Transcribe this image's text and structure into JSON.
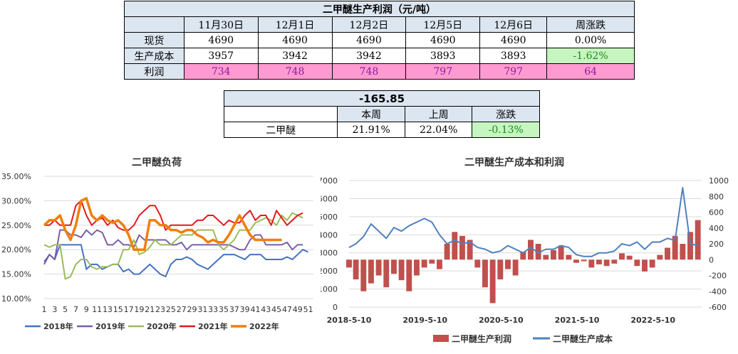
{
  "table1": {
    "title": "二甲醚生产利润（元/吨）",
    "headers": [
      "11月30日",
      "12月1日",
      "12月2日",
      "12月5日",
      "12月6日",
      "周涨跌"
    ],
    "rows": [
      {
        "label": "现货",
        "values": [
          "4690",
          "4690",
          "4690",
          "4690",
          "4690",
          "0.00%"
        ]
      },
      {
        "label": "生产成本",
        "values": [
          "3957",
          "3942",
          "3942",
          "3893",
          "3893",
          "-1.62%"
        ]
      },
      {
        "label": "利润",
        "values": [
          "734",
          "748",
          "748",
          "797",
          "797",
          "64"
        ]
      }
    ]
  },
  "table2": {
    "title": "-165.85",
    "headers": [
      "本周",
      "上周",
      "涨跌"
    ],
    "row": {
      "label": "二甲醚",
      "values": [
        "21.91%",
        "22.04%",
        "-0.13%"
      ]
    }
  },
  "chart_data": [
    {
      "type": "line",
      "title": "二甲醚负荷",
      "yticks": [
        "10.00%",
        "15.00%",
        "20.00%",
        "25.00%",
        "30.00%",
        "35.00%"
      ],
      "ylim": [
        10,
        35
      ],
      "xticks": [
        "1",
        "3",
        "5",
        "7",
        "9",
        "11",
        "13",
        "15",
        "17",
        "19",
        "21",
        "23",
        "25",
        "27",
        "29",
        "31",
        "33",
        "35",
        "37",
        "39",
        "41",
        "43",
        "45",
        "47",
        "49",
        "51"
      ],
      "xlim": [
        1,
        52
      ],
      "series": [
        {
          "name": "2018年",
          "color": "#4472c4",
          "x": [
            1,
            2,
            3,
            4,
            5,
            6,
            7,
            8,
            9,
            10,
            11,
            12,
            13,
            14,
            15,
            16,
            17,
            18,
            19,
            20,
            21,
            22,
            23,
            24,
            25,
            26,
            27,
            28,
            29,
            30,
            31,
            32,
            33,
            34,
            35,
            36,
            37,
            38,
            39,
            40,
            41,
            42,
            43,
            44,
            45,
            46,
            47,
            48,
            49,
            50,
            51
          ],
          "y": [
            17.5,
            19,
            18,
            21,
            21,
            21,
            21,
            21,
            16,
            17,
            17,
            16,
            16.5,
            17,
            17,
            15.5,
            16,
            15,
            15,
            16,
            17,
            16,
            15,
            14.5,
            17,
            18,
            18,
            18.5,
            18,
            17,
            16.5,
            16,
            17,
            18,
            19,
            19,
            19,
            18.5,
            18,
            19,
            19,
            19,
            18,
            18,
            18,
            18,
            18.5,
            18,
            19,
            20,
            19.5
          ]
        },
        {
          "name": "2019年",
          "color": "#7b5ea7",
          "x": [
            1,
            2,
            3,
            4,
            5,
            6,
            7,
            8,
            9,
            10,
            11,
            12,
            13,
            14,
            15,
            16,
            17,
            18,
            19,
            20,
            21,
            22,
            23,
            24,
            25,
            26,
            27,
            28,
            29,
            30,
            31,
            32,
            33,
            34,
            35,
            36,
            37,
            38,
            39,
            40,
            41,
            42,
            43,
            44,
            45,
            46,
            47,
            48,
            49,
            50
          ],
          "y": [
            17,
            19,
            18,
            24,
            24,
            23,
            23,
            22.5,
            24,
            23,
            24,
            23.5,
            21,
            21,
            22,
            21,
            21,
            20.5,
            23,
            22,
            22,
            22,
            22,
            22,
            21,
            21,
            21.5,
            20,
            21,
            21,
            21,
            21,
            21,
            21,
            21,
            21,
            20.5,
            20,
            20,
            22,
            23,
            23,
            21,
            21,
            21,
            21,
            21.5,
            20,
            21,
            21
          ]
        },
        {
          "name": "2020年",
          "color": "#9bbb59",
          "x": [
            1,
            2,
            3,
            4,
            5,
            6,
            7,
            8,
            9,
            10,
            11,
            12,
            13,
            14,
            15,
            16,
            17,
            18,
            19,
            20,
            21,
            22,
            23,
            24,
            25,
            26,
            27,
            28,
            29,
            30,
            31,
            32,
            33,
            34,
            35,
            36,
            37,
            38,
            39,
            40,
            41,
            42,
            43,
            44,
            45,
            46,
            47,
            48,
            49,
            50
          ],
          "y": [
            21,
            20.5,
            21,
            21,
            14,
            14.5,
            17,
            18,
            18,
            16.5,
            16,
            16.5,
            16.5,
            17,
            17,
            20,
            20,
            22,
            19,
            19.5,
            20.5,
            22,
            21,
            21,
            21,
            22,
            23,
            23,
            23,
            24,
            24,
            24,
            24,
            21,
            20,
            21,
            22,
            24,
            24,
            24,
            25.5,
            26,
            26.5,
            26,
            25,
            27,
            26,
            27.5,
            27,
            26.5
          ]
        },
        {
          "name": "2021年",
          "color": "#e31a1c",
          "x": [
            1,
            2,
            3,
            4,
            5,
            6,
            7,
            8,
            9,
            10,
            11,
            12,
            13,
            14,
            15,
            16,
            17,
            18,
            19,
            20,
            21,
            22,
            23,
            24,
            25,
            26,
            27,
            28,
            29,
            30,
            31,
            32,
            33,
            34,
            35,
            36,
            37,
            38,
            39,
            40,
            41,
            42,
            43,
            44,
            45,
            46,
            47,
            48,
            49,
            50
          ],
          "y": [
            25,
            25,
            26,
            25,
            25,
            25,
            29,
            30,
            27,
            25,
            26,
            26.5,
            25,
            26,
            24.5,
            24,
            24,
            25,
            27,
            28,
            29,
            29,
            27,
            24,
            25,
            25,
            25,
            25,
            25,
            26,
            26,
            27,
            27,
            26,
            25,
            26,
            25.5,
            25.5,
            27,
            28,
            26,
            27,
            27,
            25,
            28,
            26.5,
            25,
            26,
            27,
            27.5
          ]
        },
        {
          "name": "2022年",
          "color": "#f07f0c",
          "x": [
            1,
            2,
            3,
            4,
            5,
            6,
            7,
            8,
            9,
            10,
            11,
            12,
            13,
            14,
            15,
            16,
            17,
            18,
            19,
            20,
            21,
            22,
            23,
            24,
            25,
            26,
            27,
            28,
            29,
            30,
            31,
            32,
            33,
            34,
            35,
            36,
            37,
            38,
            39,
            40,
            41,
            42,
            43,
            44,
            45,
            46
          ],
          "y": [
            25,
            26,
            26,
            27,
            24,
            22,
            25,
            30,
            30.5,
            27,
            26,
            27,
            26,
            25.5,
            26,
            25,
            23,
            20,
            20,
            20,
            26,
            26,
            25,
            25,
            24,
            24,
            23.5,
            24,
            24,
            23,
            22.5,
            21.5,
            22,
            21.5,
            21.5,
            23,
            25,
            27,
            25,
            23,
            22,
            22,
            22,
            22,
            22,
            22
          ]
        }
      ],
      "legend": "bottom"
    },
    {
      "type": "area+line",
      "title": "二甲醚生产成本和利润",
      "yticks_left": [
        "0",
        "1000",
        "2000",
        "3000",
        "4000",
        "5000",
        "6000",
        "7000"
      ],
      "ylim_left": [
        0,
        7000
      ],
      "yticks_right": [
        "-600",
        "-400",
        "-200",
        "0",
        "200",
        "400",
        "600",
        "800",
        "1000"
      ],
      "ylim_right": [
        -600,
        1000
      ],
      "xticks": [
        "2018-5-10",
        "2019-5-10",
        "2020-5-10",
        "2021-5-10",
        "2022-5-10"
      ],
      "xlim": [
        2018.36,
        2023.0
      ],
      "series": [
        {
          "name": "二甲醚生产利润",
          "color": "#c0504d",
          "axis": "right",
          "x": [
            2018.36,
            2018.45,
            2018.55,
            2018.65,
            2018.75,
            2018.85,
            2018.95,
            2019.05,
            2019.15,
            2019.25,
            2019.35,
            2019.45,
            2019.55,
            2019.65,
            2019.75,
            2019.85,
            2019.95,
            2020.05,
            2020.15,
            2020.25,
            2020.35,
            2020.45,
            2020.55,
            2020.65,
            2020.75,
            2020.85,
            2020.95,
            2021.05,
            2021.15,
            2021.25,
            2021.35,
            2021.45,
            2021.55,
            2021.65,
            2021.75,
            2021.85,
            2021.95,
            2022.05,
            2022.15,
            2022.25,
            2022.35,
            2022.45,
            2022.55,
            2022.65,
            2022.75,
            2022.85,
            2022.95
          ],
          "y": [
            -100,
            -250,
            -400,
            -300,
            -200,
            -350,
            -180,
            -260,
            -400,
            -200,
            -100,
            -50,
            -120,
            200,
            350,
            300,
            250,
            -100,
            -350,
            -550,
            -250,
            -120,
            -200,
            100,
            250,
            200,
            60,
            120,
            180,
            60,
            -40,
            -20,
            -100,
            -60,
            -80,
            -50,
            80,
            50,
            -80,
            -150,
            -100,
            60,
            150,
            300,
            200,
            350,
            500
          ]
        },
        {
          "name": "二甲醚生产成本",
          "color": "#4f81bd",
          "axis": "left",
          "x": [
            2018.36,
            2018.45,
            2018.55,
            2018.65,
            2018.75,
            2018.85,
            2018.95,
            2019.05,
            2019.15,
            2019.25,
            2019.35,
            2019.45,
            2019.55,
            2019.65,
            2019.75,
            2019.85,
            2019.95,
            2020.05,
            2020.15,
            2020.25,
            2020.35,
            2020.45,
            2020.55,
            2020.65,
            2020.75,
            2020.85,
            2020.95,
            2021.05,
            2021.15,
            2021.25,
            2021.35,
            2021.45,
            2021.55,
            2021.65,
            2021.75,
            2021.85,
            2021.95,
            2022.05,
            2022.15,
            2022.25,
            2022.35,
            2022.45,
            2022.55,
            2022.65,
            2022.75,
            2022.85,
            2022.95
          ],
          "y": [
            3300,
            3500,
            3900,
            4600,
            4200,
            3800,
            4400,
            4200,
            4500,
            4700,
            4900,
            4700,
            4000,
            3500,
            3700,
            3500,
            3600,
            3300,
            3200,
            3000,
            3100,
            3400,
            3200,
            3000,
            3300,
            3000,
            3200,
            3200,
            3400,
            3300,
            2900,
            2800,
            2800,
            3000,
            3000,
            3100,
            3500,
            3400,
            3600,
            3200,
            3600,
            3600,
            3800,
            3700,
            6600,
            3500,
            3400
          ]
        }
      ],
      "legend": "bottom"
    }
  ]
}
